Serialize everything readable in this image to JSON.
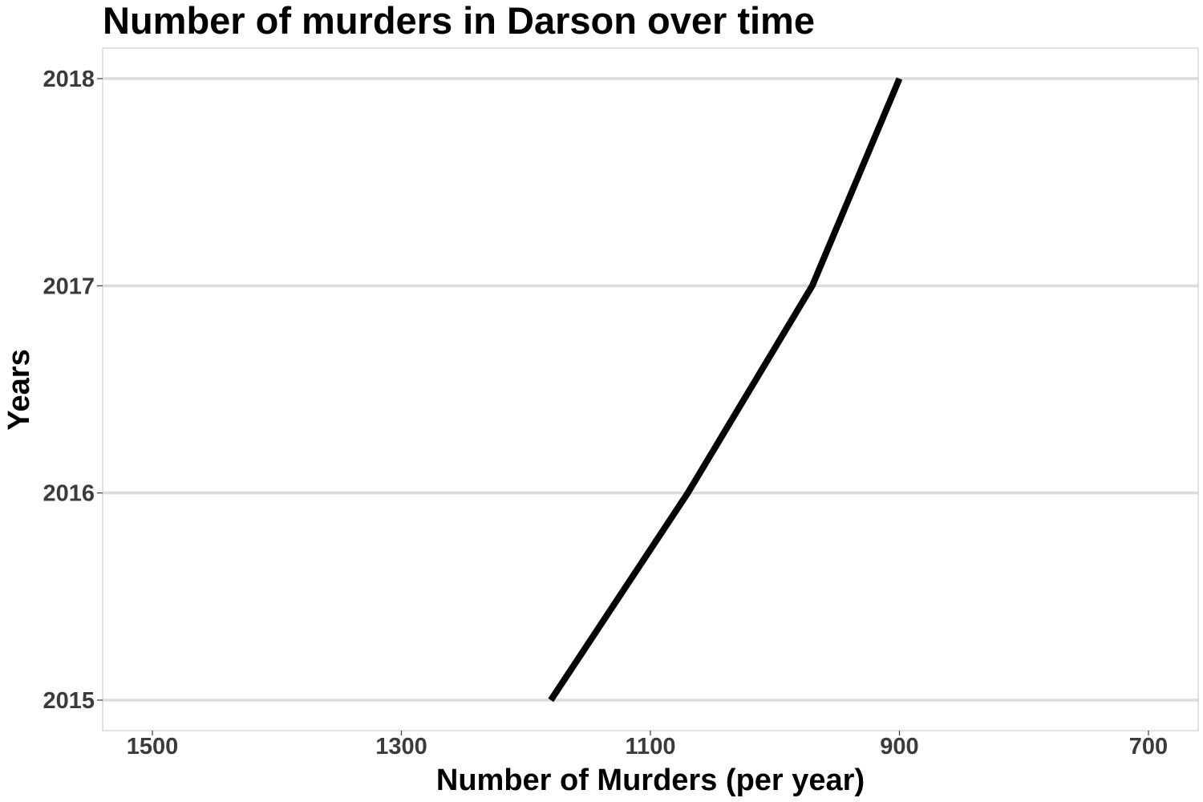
{
  "chart_data": {
    "type": "line",
    "title": "Number of murders in Darson over time",
    "xlabel": "Number of Murders (per year)",
    "ylabel": "Years",
    "x_reversed": true,
    "xlim": [
      700,
      1500
    ],
    "ylim": [
      2015,
      2018
    ],
    "x_ticks": [
      1500,
      1300,
      1100,
      900,
      700
    ],
    "y_ticks": [
      2015,
      2016,
      2017,
      2018
    ],
    "grid": "horizontal major",
    "legend": "none",
    "series": [
      {
        "color": "#000000",
        "points": [
          {
            "year": 2015,
            "murders": 1180
          },
          {
            "year": 2016,
            "murders": 1070
          },
          {
            "year": 2017,
            "murders": 970
          },
          {
            "year": 2018,
            "murders": 900
          }
        ]
      }
    ]
  }
}
